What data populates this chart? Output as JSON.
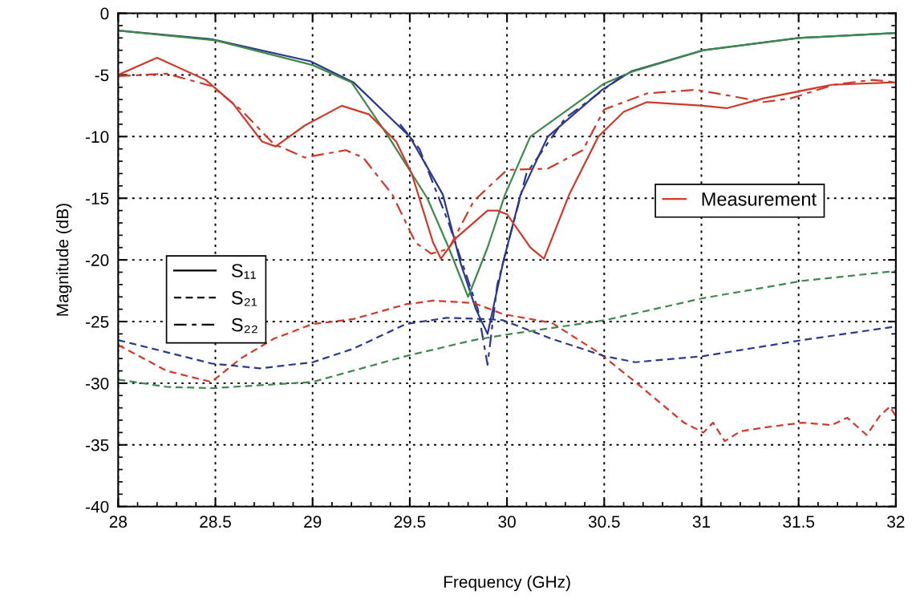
{
  "chart_data": {
    "type": "line",
    "xlabel": "Frequency (GHz)",
    "ylabel": "Magnitude (dB)",
    "xlim": [
      28,
      32
    ],
    "xticks": [
      28,
      28.5,
      29,
      29.5,
      30,
      30.5,
      31,
      31.5,
      32
    ],
    "ylim": [
      -40,
      0
    ],
    "yticks": [
      -40,
      -35,
      -30,
      -25,
      -20,
      -15,
      -10,
      -5,
      0
    ],
    "grid": true,
    "legend": "center right",
    "marker": "none",
    "series": [
      {
        "color": "#2b3a8c",
        "line_style": "solid",
        "x": [
          28,
          28.48,
          28.99,
          29.21,
          29.5,
          29.67,
          29.76,
          29.84,
          29.9,
          29.98,
          30.07,
          30.21,
          30.49,
          30.64,
          31.01,
          31.5,
          32
        ],
        "values": [
          -1.4,
          -2.1,
          -3.9,
          -5.6,
          -10,
          -14.7,
          -20.2,
          -24,
          -26,
          -20.2,
          -14.7,
          -10,
          -6.2,
          -4.7,
          -3.0,
          -2.0,
          -1.6
        ]
      },
      {
        "color": "#3f8a4a",
        "line_style": "solid",
        "x": [
          28,
          28.5,
          29,
          29.2,
          29.39,
          29.59,
          29.7,
          29.8,
          29.9,
          29.99,
          30.12,
          30.5,
          30.65,
          31.01,
          31.5,
          32
        ],
        "values": [
          -1.4,
          -2.2,
          -4.2,
          -5.6,
          -10,
          -15,
          -19,
          -23,
          -19,
          -14.7,
          -10,
          -5.7,
          -4.7,
          -3.0,
          -2.0,
          -1.6
        ]
      },
      {
        "color": "#2b3a8c",
        "line_style": "dashdot",
        "x": [
          29.45,
          29.55,
          29.7,
          29.85,
          29.9,
          29.95,
          30.1,
          30.3,
          30.6
        ],
        "values": [
          -9,
          -11,
          -17,
          -24,
          -28.5,
          -22,
          -13,
          -8.5,
          -5
        ]
      },
      {
        "name": "Measurement",
        "color": "#d03a2a",
        "line_style": "solid",
        "x": [
          28,
          28.2,
          28.45,
          28.59,
          28.74,
          28.81,
          28.96,
          29.15,
          29.29,
          29.43,
          29.51,
          29.62,
          29.66,
          29.74,
          29.9,
          29.95,
          30.0,
          30.12,
          30.19,
          30.32,
          30.47,
          30.6,
          30.72,
          31.01,
          31.13,
          31.32,
          31.67,
          32
        ],
        "values": [
          -5,
          -3.6,
          -5.4,
          -7.3,
          -10.4,
          -10.8,
          -9.1,
          -7.5,
          -8.2,
          -10.4,
          -13,
          -18.6,
          -19.9,
          -18.2,
          -16,
          -16,
          -16.3,
          -19,
          -19.9,
          -14.7,
          -10,
          -8,
          -7.2,
          -7.5,
          -7.7,
          -6.9,
          -5.8,
          -5.6
        ]
      },
      {
        "color": "#d03a2a",
        "line_style": "dashdot",
        "x": [
          28,
          28.25,
          28.48,
          28.63,
          28.8,
          28.96,
          29.17,
          29.26,
          29.41,
          29.53,
          29.61,
          29.7,
          29.83,
          30.0,
          30.21,
          30.39,
          30.5,
          30.72,
          30.97,
          31.15,
          31.32,
          31.46,
          31.68,
          31.88,
          32
        ],
        "values": [
          -5.1,
          -4.9,
          -5.9,
          -7.8,
          -10.6,
          -11.7,
          -11.1,
          -11.7,
          -14.7,
          -18.6,
          -19.5,
          -19.1,
          -15.2,
          -12.7,
          -12.6,
          -11.1,
          -7.8,
          -6.5,
          -6.2,
          -6.7,
          -7.2,
          -6.9,
          -5.8,
          -5.4,
          -5.6
        ]
      },
      {
        "color": "#d03a2a",
        "line_style": "dashed",
        "x": [
          28,
          28.25,
          28.48,
          28.63,
          28.8,
          29.0,
          29.21,
          29.48,
          29.62,
          29.83,
          29.98,
          30.23,
          30.47,
          30.66,
          30.91,
          31.01,
          31.06,
          31.12,
          31.2,
          31.32,
          31.52,
          31.67,
          31.75,
          31.85,
          31.92,
          31.97,
          32
        ],
        "values": [
          -26.9,
          -29,
          -29.9,
          -28,
          -26.4,
          -25.2,
          -24.8,
          -23.6,
          -23.3,
          -23.5,
          -24.4,
          -25.1,
          -27.5,
          -29.9,
          -33.2,
          -34,
          -33.2,
          -34.7,
          -33.9,
          -33.6,
          -33.2,
          -33.4,
          -32.8,
          -34.2,
          -32.6,
          -31.9,
          -32.7
        ]
      },
      {
        "color": "#2b3a8c",
        "line_style": "dashed",
        "x": [
          28,
          28.48,
          28.73,
          29,
          29.21,
          29.48,
          29.69,
          29.9,
          29.98,
          30.23,
          30.5,
          30.66,
          31.01,
          31.52,
          32
        ],
        "values": [
          -26.5,
          -28.4,
          -28.8,
          -28.3,
          -27.2,
          -25.2,
          -24.7,
          -24.8,
          -24.9,
          -26.4,
          -27.8,
          -28.3,
          -27.8,
          -26.5,
          -25.4
        ]
      },
      {
        "color": "#3f8a4a",
        "line_style": "dashed",
        "x": [
          28,
          28.25,
          28.49,
          29,
          29.48,
          29.83,
          29.98,
          30.5,
          31.01,
          31.52,
          32
        ],
        "values": [
          -29.7,
          -30.3,
          -30.4,
          -29.9,
          -27.8,
          -26.5,
          -26.1,
          -24.9,
          -23.1,
          -21.7,
          -20.9
        ]
      },
      {
        "name": "S₁₁",
        "color": "#000000",
        "line_style": "solid"
      },
      {
        "name": "S₂₁",
        "color": "#000000",
        "line_style": "dashed"
      },
      {
        "name": "S₂₂",
        "color": "#000000",
        "line_style": "dashdot"
      }
    ]
  }
}
